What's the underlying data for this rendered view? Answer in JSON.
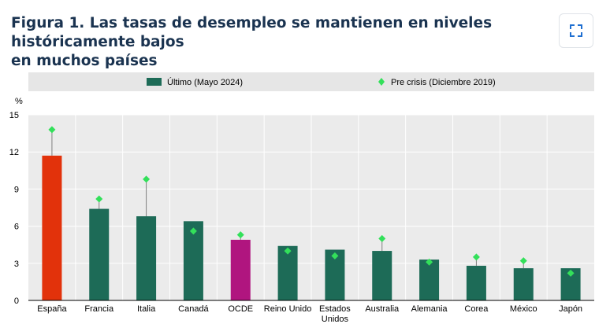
{
  "header": {
    "title_line1": "Figura 1. Las tasas de desempleo se mantienen en niveles históricamente bajos",
    "title_line2": "en muchos países",
    "expand_icon": "expand-icon"
  },
  "chart_data": {
    "type": "bar",
    "ylabel": "%",
    "ylim": [
      0,
      15
    ],
    "yticks": [
      0,
      3,
      6,
      9,
      12,
      15
    ],
    "grid": true,
    "legend_position": "top",
    "categories": [
      "España",
      "Francia",
      "Italia",
      "Canadá",
      "OCDE",
      "Reino Unido",
      "Estados Unidos",
      "Australia",
      "Alemania",
      "Corea",
      "México",
      "Japón"
    ],
    "category_lines": [
      [
        "España"
      ],
      [
        "Francia"
      ],
      [
        "Italia"
      ],
      [
        "Canadá"
      ],
      [
        "OCDE"
      ],
      [
        "Reino Unido"
      ],
      [
        "Estados",
        "Unidos"
      ],
      [
        "Australia"
      ],
      [
        "Alemania"
      ],
      [
        "Corea"
      ],
      [
        "México"
      ],
      [
        "Japón"
      ]
    ],
    "series": [
      {
        "name": "Último (Mayo 2024)",
        "kind": "bar",
        "color": "#1d6b57",
        "values": [
          11.7,
          7.4,
          6.8,
          6.4,
          4.9,
          4.4,
          4.1,
          4.0,
          3.3,
          2.8,
          2.6,
          2.6
        ]
      },
      {
        "name": "Pre crisis (Diciembre 2019)",
        "kind": "marker",
        "color": "#33e05a",
        "values": [
          13.8,
          8.2,
          9.8,
          5.6,
          5.3,
          4.0,
          3.6,
          5.0,
          3.1,
          3.5,
          3.2,
          2.2
        ]
      }
    ],
    "highlight_colors": {
      "España": "#e2320b",
      "OCDE": "#b0157f"
    },
    "colors": {
      "plot_bg": "#ebebeb",
      "legend_bg": "#e6e6e6",
      "grid": "#ffffff",
      "connector": "#7f7f7f"
    }
  }
}
